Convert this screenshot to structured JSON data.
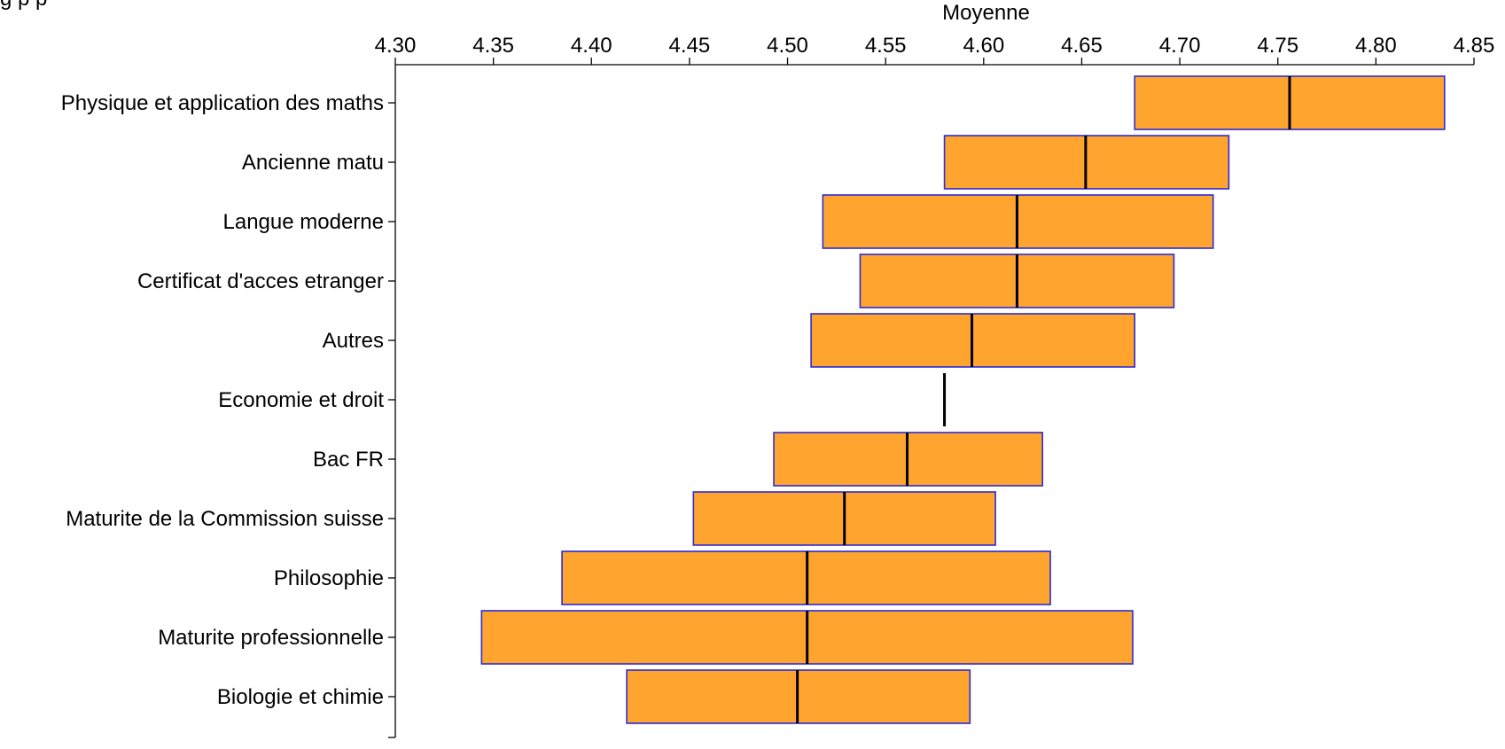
{
  "header": {
    "partial_text": "g   p         p"
  },
  "chart_data": {
    "type": "box",
    "xlabel": "Moyenne",
    "xlim": [
      4.3,
      4.85
    ],
    "x_ticks": [
      4.3,
      4.35,
      4.4,
      4.45,
      4.5,
      4.55,
      4.6,
      4.65,
      4.7,
      4.75,
      4.8,
      4.85
    ],
    "x_tick_labels": [
      "4.30",
      "4.35",
      "4.40",
      "4.45",
      "4.50",
      "4.55",
      "4.60",
      "4.65",
      "4.70",
      "4.75",
      "4.80",
      "4.85"
    ],
    "x_axis_position": "top",
    "box_fill": "#FFA52F",
    "box_stroke": "#2B2BD6",
    "median_color": "#000000",
    "categories": [
      "Physique et application des maths",
      "Ancienne matu",
      "Langue moderne",
      "Certificat d'acces etranger",
      "Autres",
      "Economie et droit",
      "Bac FR",
      "Maturite de la Commission suisse",
      "Philosophie",
      "Maturite professionnelle",
      "Biologie et chimie"
    ],
    "boxes": [
      {
        "category": "Physique et application des maths",
        "low": 4.677,
        "median": 4.756,
        "high": 4.835
      },
      {
        "category": "Ancienne matu",
        "low": 4.58,
        "median": 4.652,
        "high": 4.725
      },
      {
        "category": "Langue moderne",
        "low": 4.518,
        "median": 4.617,
        "high": 4.717
      },
      {
        "category": "Certificat d'acces etranger",
        "low": 4.537,
        "median": 4.617,
        "high": 4.697
      },
      {
        "category": "Autres",
        "low": 4.512,
        "median": 4.594,
        "high": 4.677
      },
      {
        "category": "Economie et droit",
        "low": 4.58,
        "median": 4.58,
        "high": 4.58
      },
      {
        "category": "Bac FR",
        "low": 4.493,
        "median": 4.561,
        "high": 4.63
      },
      {
        "category": "Maturite de la Commission suisse",
        "low": 4.452,
        "median": 4.529,
        "high": 4.606
      },
      {
        "category": "Philosophie",
        "low": 4.385,
        "median": 4.51,
        "high": 4.634
      },
      {
        "category": "Maturite professionnelle",
        "low": 4.344,
        "median": 4.51,
        "high": 4.676
      },
      {
        "category": "Biologie et chimie",
        "low": 4.418,
        "median": 4.505,
        "high": 4.593
      }
    ]
  }
}
